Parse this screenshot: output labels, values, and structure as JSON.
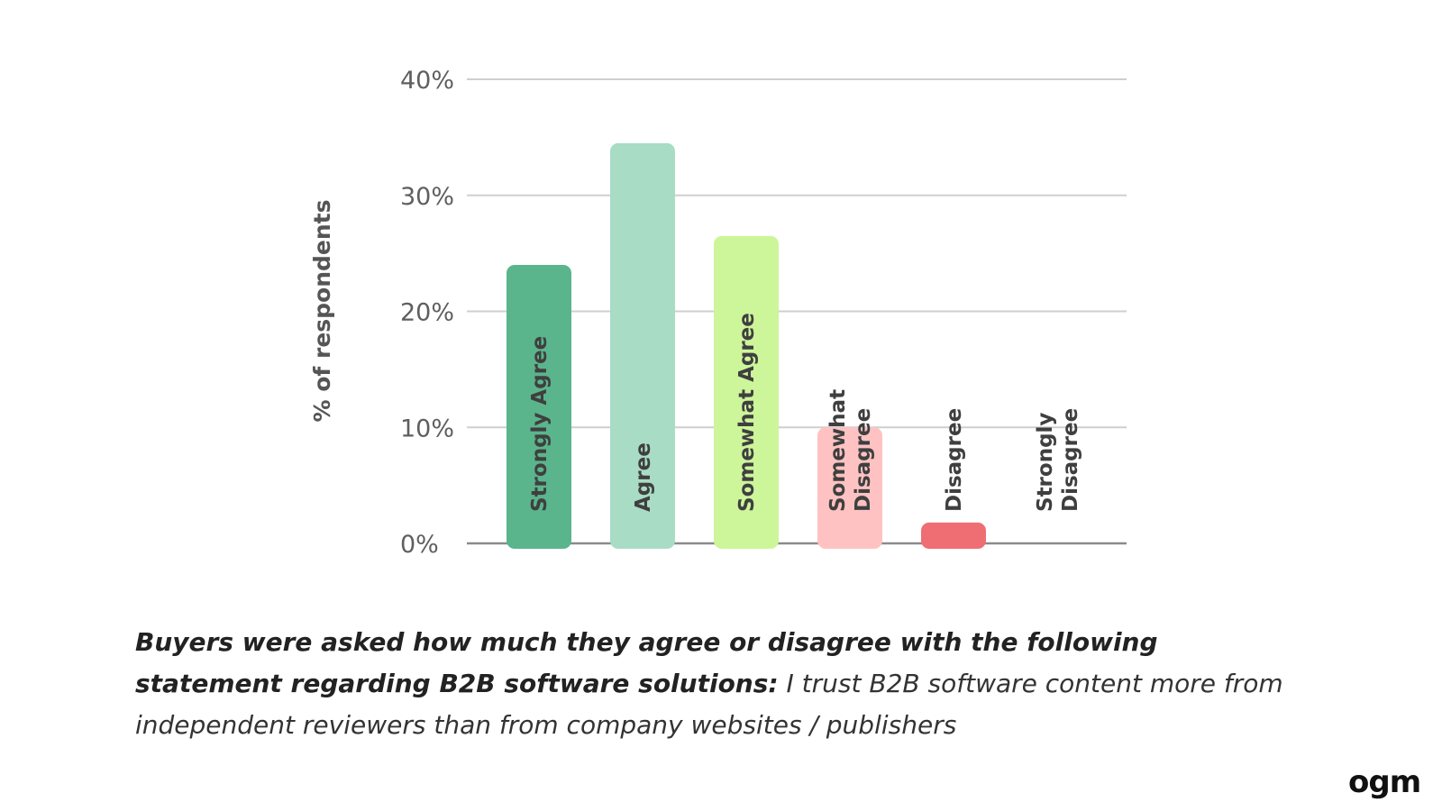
{
  "chart_data": {
    "type": "bar",
    "categories": [
      "Strongly Agree",
      "Agree",
      "Somewhat Agree",
      "Somewhat Disagree",
      "Disagree",
      "Strongly Disagree"
    ],
    "values": [
      24,
      34.5,
      26.5,
      10,
      1.8,
      0
    ],
    "colors": [
      "#5ab58c",
      "#a8dcc5",
      "#cdf59a",
      "#ffc2c2",
      "#ee6e74",
      "#ffffff"
    ],
    "ylabel": "% of respondents",
    "ylim": [
      0,
      40
    ],
    "yticks": [
      0,
      10,
      20,
      30,
      40
    ],
    "ytick_labels": [
      "0%",
      "10%",
      "20%",
      "30%",
      "40%"
    ],
    "grid": true
  },
  "caption": {
    "bold_text": "Buyers were asked how much they agree or disagree with the following statement regarding B2B software solutions:",
    "italic_text": "I trust B2B software content more from independent reviewers than from company websites / publishers"
  },
  "logo": {
    "text": "ogm"
  }
}
